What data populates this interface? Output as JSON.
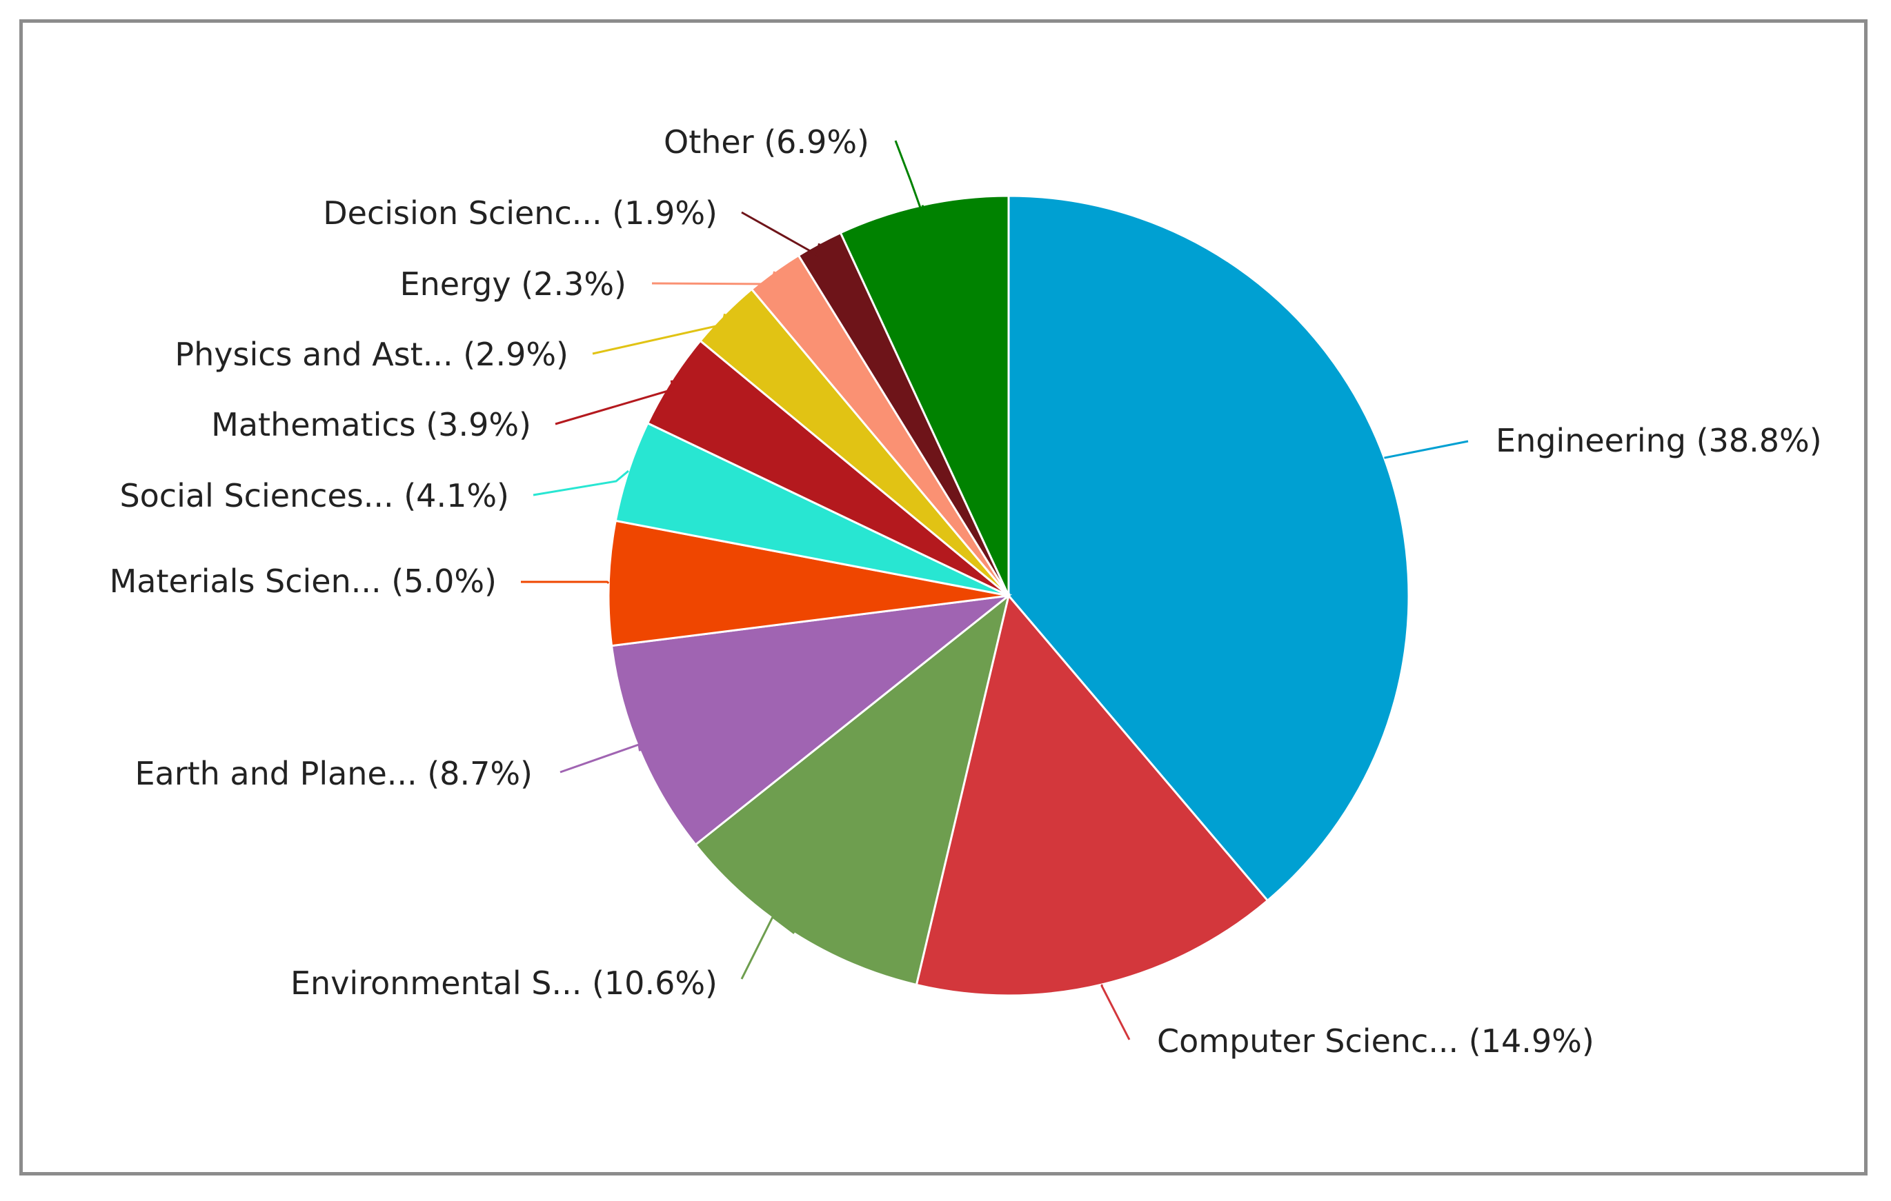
{
  "chart_data": {
    "type": "pie",
    "title": "",
    "start_angle_deg": 0,
    "direction": "clockwise",
    "slices": [
      {
        "label": "Engineering (38.8%)",
        "value": 38.8,
        "color": "#00a0d2"
      },
      {
        "label": "Computer Scienc... (14.9%)",
        "value": 14.9,
        "color": "#d3373c"
      },
      {
        "label": "Environmental S... (10.6%)",
        "value": 10.6,
        "color": "#6e9e4f"
      },
      {
        "label": "Earth and Plane... (8.7%)",
        "value": 8.7,
        "color": "#a064b2"
      },
      {
        "label": "Materials Scien... (5.0%)",
        "value": 5.0,
        "color": "#ef4600"
      },
      {
        "label": "Social Sciences... (4.1%)",
        "value": 4.1,
        "color": "#28e6d2"
      },
      {
        "label": "Mathematics (3.9%)",
        "value": 3.9,
        "color": "#b4191e"
      },
      {
        "label": "Physics and Ast... (2.9%)",
        "value": 2.9,
        "color": "#e1c314"
      },
      {
        "label": "Energy (2.3%)",
        "value": 2.3,
        "color": "#fa9173"
      },
      {
        "label": "Decision Scienc... (1.9%)",
        "value": 1.9,
        "color": "#6e1419"
      },
      {
        "label": "Other (6.9%)",
        "value": 6.9,
        "color": "#008200"
      }
    ]
  }
}
